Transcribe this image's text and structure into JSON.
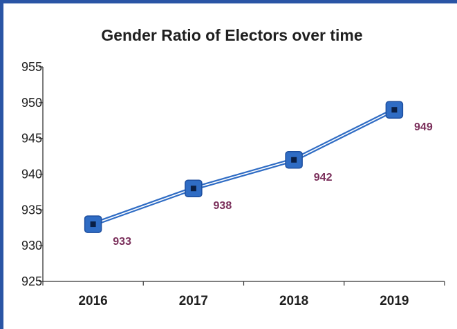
{
  "chart_data": {
    "type": "line",
    "title": "Gender Ratio of Electors over time",
    "xlabel": "",
    "ylabel": "",
    "categories": [
      "2016",
      "2017",
      "2018",
      "2019"
    ],
    "series": [
      {
        "values": [
          933,
          938,
          942,
          949
        ]
      }
    ],
    "data_labels": [
      "933",
      "938",
      "942",
      "949"
    ],
    "ylim": [
      925,
      955
    ],
    "yticks": [
      925,
      930,
      935,
      940,
      945,
      950,
      955
    ],
    "ytick_labels": [
      "925",
      "930",
      "935",
      "940",
      "945",
      "950",
      "955"
    ],
    "grid": false,
    "legend": "none",
    "colors": {
      "frame": "#2a55a5",
      "line": "#2f6cc4",
      "marker_fill": "#2f6cc4",
      "marker_center": "#0a1f45",
      "data_label": "#7a2e5a",
      "axis": "#333333"
    }
  }
}
